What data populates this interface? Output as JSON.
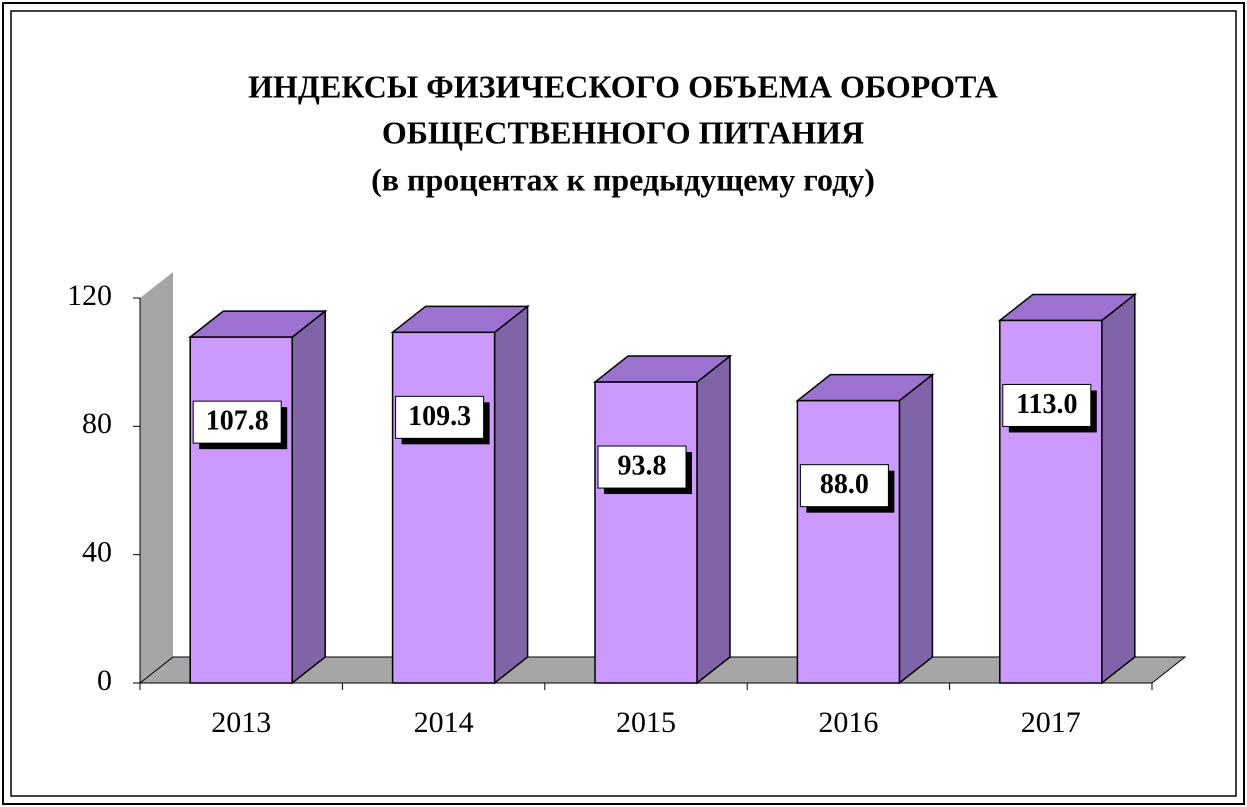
{
  "chart_data": {
    "type": "bar3d",
    "title": [
      "ИНДЕКСЫ ФИЗИЧЕСКОГО ОБЪЕМА ОБОРОТА",
      "ОБЩЕСТВЕННОГО ПИТАНИЯ"
    ],
    "subtitle": "(в процентах к предыдущему году)",
    "categories": [
      "2013",
      "2014",
      "2015",
      "2016",
      "2017"
    ],
    "values": [
      107.8,
      109.3,
      93.8,
      88.0,
      113.0
    ],
    "value_labels": [
      "107.8",
      "109.3",
      "93.8",
      "88.0",
      "113.0"
    ],
    "color": "#cc99ff",
    "ylim": [
      0,
      120
    ],
    "yticks": [
      0,
      40,
      80,
      120
    ],
    "grid": false
  }
}
